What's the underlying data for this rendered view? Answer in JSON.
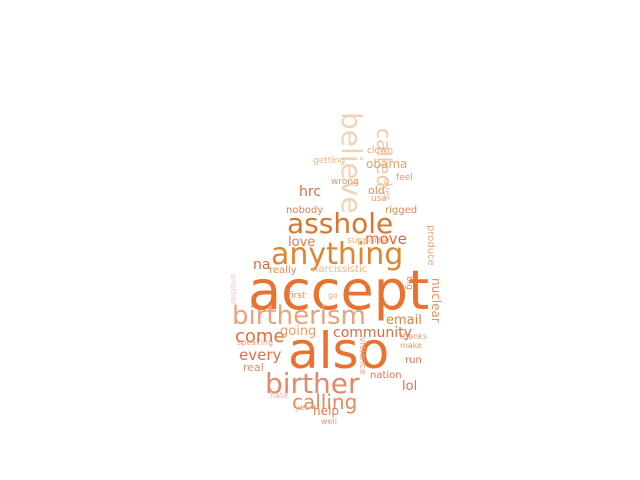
{
  "words": [
    {
      "text": "accept",
      "color": "#e8732e"
    },
    {
      "text": "also",
      "color": "#e8732e"
    },
    {
      "text": "anything",
      "color": "#e0852f"
    },
    {
      "text": "asshole",
      "color": "#d9762e"
    },
    {
      "text": "birtherism",
      "color": "#eca27a"
    },
    {
      "text": "birther",
      "color": "#e9876a"
    },
    {
      "text": "believe",
      "color": "#f2d3b6"
    },
    {
      "text": "called",
      "color": "#f0c9a6"
    },
    {
      "text": "calling",
      "color": "#e48b5c"
    },
    {
      "text": "come",
      "color": "#dc6e38"
    },
    {
      "text": "community",
      "color": "#e06a3c"
    },
    {
      "text": "email",
      "color": "#e0823f"
    },
    {
      "text": "going",
      "color": "#e9a060"
    },
    {
      "text": "every",
      "color": "#e26f4c"
    },
    {
      "text": "love",
      "color": "#e07b43"
    },
    {
      "text": "move",
      "color": "#dd6a35"
    },
    {
      "text": "na",
      "color": "#d76a3a"
    },
    {
      "text": "hrc",
      "color": "#db6a3a"
    },
    {
      "text": "nobody",
      "color": "#e07c50"
    },
    {
      "text": "obama",
      "color": "#e7a36b"
    },
    {
      "text": "clown",
      "color": "#e9a272"
    },
    {
      "text": "getting",
      "color": "#eeb684"
    },
    {
      "text": "wrong",
      "color": "#e8905e"
    },
    {
      "text": "feel",
      "color": "#e99b6a"
    },
    {
      "text": "old",
      "color": "#e88a4d"
    },
    {
      "text": "usa",
      "color": "#ee9f73"
    },
    {
      "text": "rigged",
      "color": "#e0894b"
    },
    {
      "text": "supporter",
      "color": "#eeb178"
    },
    {
      "text": "really",
      "color": "#e58750"
    },
    {
      "text": "narcissistic",
      "color": "#eeb37f"
    },
    {
      "text": "first",
      "color": "#e2925c"
    },
    {
      "text": "lol",
      "color": "#e0705a"
    },
    {
      "text": "nation",
      "color": "#e07450"
    },
    {
      "text": "real",
      "color": "#e48e69"
    },
    {
      "text": "run",
      "color": "#e06c56"
    },
    {
      "text": "help",
      "color": "#e07a52"
    },
    {
      "text": "thanks",
      "color": "#e49a6a"
    },
    {
      "text": "make",
      "color": "#e49a6a"
    },
    {
      "text": "speaking",
      "color": "#ee9c8a"
    },
    {
      "text": "violence",
      "color": "#f0aa8a"
    },
    {
      "text": "nuclear",
      "color": "#e58e62"
    },
    {
      "text": "produce",
      "color": "#eaa67c"
    },
    {
      "text": "hate",
      "color": "#eeb3a4"
    },
    {
      "text": "yes",
      "color": "#e79c7a"
    },
    {
      "text": "well",
      "color": "#e39a7a"
    },
    {
      "text": "another",
      "color": "#f3c4bb"
    },
    {
      "text": "big",
      "color": "#e38e5a"
    },
    {
      "text": "ever",
      "color": "#f0bfa0"
    },
    {
      "text": "go",
      "color": "#e9a776"
    }
  ]
}
